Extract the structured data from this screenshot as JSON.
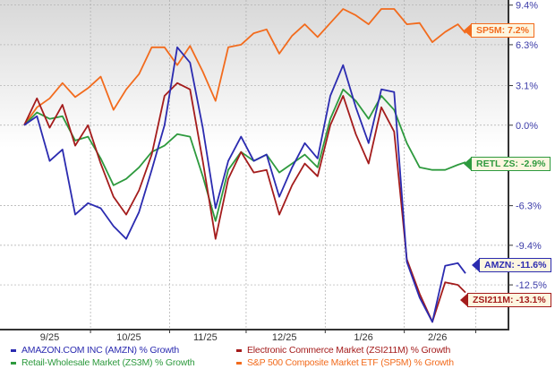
{
  "chart_data": {
    "type": "line",
    "title": "",
    "xlabel": "",
    "ylabel": "",
    "ylim": [
      -16.0,
      9.8
    ],
    "y_ticks": [
      "9.4%",
      "6.3%",
      "3.1%",
      "0.0%",
      "-6.3%",
      "-9.4%",
      "-12.5%"
    ],
    "y_tick_values": [
      9.4,
      6.3,
      3.1,
      0.0,
      -6.3,
      -9.4,
      -12.5
    ],
    "x_ticks": [
      "9/25",
      "10/25",
      "11/25",
      "12/25",
      "1/26",
      "2/26"
    ],
    "grid": true,
    "y_axis_side": "right",
    "x": [
      "2025-09-05",
      "2025-09-10",
      "2025-09-15",
      "2025-09-20",
      "2025-09-25",
      "2025-09-30",
      "2025-10-05",
      "2025-10-10",
      "2025-10-15",
      "2025-10-20",
      "2025-10-25",
      "2025-10-30",
      "2025-11-04",
      "2025-11-09",
      "2025-11-14",
      "2025-11-19",
      "2025-11-24",
      "2025-11-29",
      "2025-12-04",
      "2025-12-09",
      "2025-12-14",
      "2025-12-19",
      "2025-12-24",
      "2025-12-29",
      "2026-01-03",
      "2026-01-08",
      "2026-01-13",
      "2026-01-18",
      "2026-01-23",
      "2026-01-28",
      "2026-02-02",
      "2026-02-07",
      "2026-02-12",
      "2026-02-17",
      "2026-02-22",
      "2026-02-25"
    ],
    "series": [
      {
        "name": "AMAZON.COM INC (AMZN) % Growth",
        "color": "#2b2bb0",
        "values": [
          0,
          0.7,
          -2.8,
          -1.9,
          -7.0,
          -6.1,
          -6.5,
          -7.9,
          -8.9,
          -6.8,
          -3.5,
          0,
          6.1,
          4.9,
          -0.2,
          -6.5,
          -2.8,
          -0.9,
          -2.8,
          -2.3,
          -5.6,
          -3.3,
          -1.4,
          -2.6,
          2.3,
          4.7,
          1.4,
          -1.4,
          2.8,
          2.6,
          -10.7,
          -13.5,
          -15.4,
          -11.0,
          -10.8,
          -11.6
        ]
      },
      {
        "name": "Electronic Commerce Market (ZSI211M) % Growth",
        "color": "#a41c1c",
        "values": [
          0,
          2.1,
          -0.2,
          1.6,
          -1.6,
          0,
          -3.0,
          -5.6,
          -7.0,
          -5.1,
          -2.3,
          2.3,
          3.3,
          2.8,
          -2.8,
          -8.9,
          -4.2,
          -2.1,
          -3.7,
          -3.5,
          -7.0,
          -4.7,
          -3.0,
          -4.0,
          0,
          2.3,
          -0.7,
          -3.0,
          1.4,
          -0.5,
          -10.5,
          -13.2,
          -15.4,
          -12.3,
          -12.5,
          -13.1
        ]
      },
      {
        "name": "Retail-Wholesale Market (ZS3M) % Growth",
        "color": "#2e9a3e",
        "values": [
          0,
          1.0,
          0.5,
          0.7,
          -1.2,
          -0.9,
          -2.6,
          -4.7,
          -4.2,
          -3.3,
          -2.1,
          -1.6,
          -0.7,
          -0.9,
          -4.0,
          -7.5,
          -3.5,
          -2.1,
          -2.8,
          -2.3,
          -3.7,
          -3.0,
          -2.3,
          -3.3,
          0.5,
          2.8,
          1.9,
          0.5,
          2.3,
          1.2,
          -1.4,
          -3.3,
          -3.5,
          -3.5,
          -3.1,
          -2.9
        ]
      },
      {
        "name": "S&P 500 Composite Market ETF (SP5M) % Growth",
        "color": "#f26b1d",
        "values": [
          0,
          1.4,
          2.1,
          3.3,
          2.2,
          2.9,
          3.8,
          1.2,
          2.8,
          4.0,
          6.1,
          6.1,
          4.7,
          6.2,
          4.2,
          1.9,
          6.1,
          6.3,
          7.2,
          7.5,
          5.6,
          7.0,
          7.9,
          6.9,
          8.0,
          9.1,
          8.6,
          7.9,
          9.1,
          9.1,
          7.9,
          8.0,
          6.5,
          7.3,
          7.9,
          7.2
        ]
      }
    ],
    "end_labels": [
      {
        "text": "SP5M: 7.2%",
        "color": "#f26b1d",
        "value": 7.2
      },
      {
        "text": "RETL ZS: -2.9%",
        "color": "#2e9a3e",
        "value": -2.9
      },
      {
        "text": "AMZN: -11.6%",
        "color": "#2b2bb0",
        "value": -11.6
      },
      {
        "text": "ZSI211M: -13.1%",
        "color": "#a41c1c",
        "value": -13.1
      }
    ],
    "legend": [
      {
        "label": "AMAZON.COM INC (AMZN) % Growth",
        "color": "#2b2bb0"
      },
      {
        "label": "Electronic Commerce Market (ZSI211M) % Growth",
        "color": "#a41c1c"
      },
      {
        "label": "Retail-Wholesale Market (ZS3M) % Growth",
        "color": "#2e9a3e"
      },
      {
        "label": "S&P 500 Composite Market ETF (SP5M) % Growth",
        "color": "#f26b1d"
      }
    ],
    "legend_position": "bottom"
  }
}
